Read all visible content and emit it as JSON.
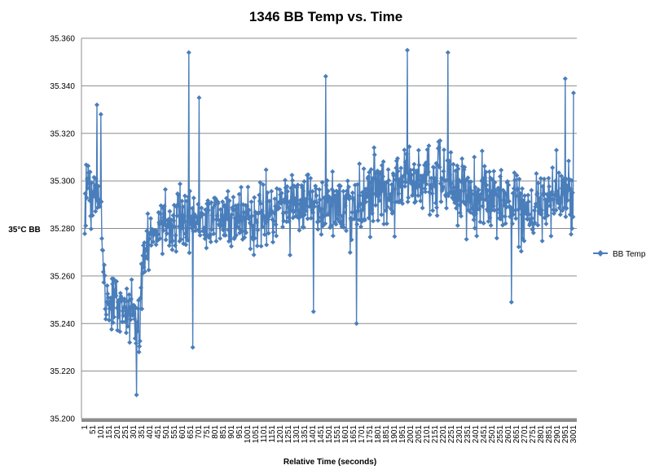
{
  "chart_data": {
    "type": "line",
    "title": "1346 BB Temp vs. Time",
    "xlabel": "Relative Time (seconds)",
    "ylabel": "35°C BB",
    "ylim": [
      35.2,
      35.36
    ],
    "yticks": [
      "35.200",
      "35.220",
      "35.240",
      "35.260",
      "35.280",
      "35.300",
      "35.320",
      "35.340",
      "35.360"
    ],
    "xticks": [
      "1",
      "51",
      "101",
      "151",
      "201",
      "251",
      "301",
      "351",
      "401",
      "451",
      "501",
      "551",
      "601",
      "651",
      "701",
      "751",
      "801",
      "851",
      "901",
      "951",
      "1001",
      "1051",
      "1101",
      "1151",
      "1201",
      "1251",
      "1301",
      "1351",
      "1401",
      "1451",
      "1501",
      "1551",
      "1601",
      "1651",
      "1701",
      "1751",
      "1801",
      "1851",
      "1901",
      "1951",
      "2001",
      "2051",
      "2101",
      "2151",
      "2201",
      "2251",
      "2301",
      "2351",
      "2401",
      "2451",
      "2501",
      "2551",
      "2601",
      "2651",
      "2701",
      "2751",
      "2801",
      "2851",
      "2901",
      "2951",
      "3001"
    ],
    "x_range": [
      1,
      3001
    ],
    "grid": "horizontal",
    "legend_position": "right",
    "series": [
      {
        "name": "BB Temp",
        "color": "#4a7ebb",
        "marker": "diamond",
        "profile_mean": [
          [
            1,
            35.296
          ],
          [
            100,
            35.292
          ],
          [
            120,
            35.252
          ],
          [
            250,
            35.247
          ],
          [
            340,
            35.242
          ],
          [
            360,
            35.272
          ],
          [
            500,
            35.283
          ],
          [
            700,
            35.284
          ],
          [
            1000,
            35.283
          ],
          [
            1250,
            35.289
          ],
          [
            1650,
            35.29
          ],
          [
            1950,
            35.3
          ],
          [
            2250,
            35.298
          ],
          [
            2400,
            35.292
          ],
          [
            2700,
            35.29
          ],
          [
            3001,
            35.294
          ]
        ],
        "profile_spread": [
          [
            1,
            0.018
          ],
          [
            100,
            0.018
          ],
          [
            120,
            0.016
          ],
          [
            340,
            0.018
          ],
          [
            360,
            0.017
          ],
          [
            1000,
            0.018
          ],
          [
            3001,
            0.02
          ]
        ],
        "peaks": [
          [
            76,
            35.332
          ],
          [
            100,
            35.328
          ],
          [
            320,
            35.21
          ],
          [
            333,
            35.228
          ],
          [
            640,
            35.354
          ],
          [
            665,
            35.23
          ],
          [
            703,
            35.335
          ],
          [
            1480,
            35.344
          ],
          [
            1980,
            35.355
          ],
          [
            2230,
            35.354
          ],
          [
            1670,
            35.24
          ],
          [
            1405,
            35.245
          ],
          [
            2620,
            35.249
          ],
          [
            2950,
            35.343
          ],
          [
            3001,
            35.337
          ]
        ]
      }
    ]
  }
}
